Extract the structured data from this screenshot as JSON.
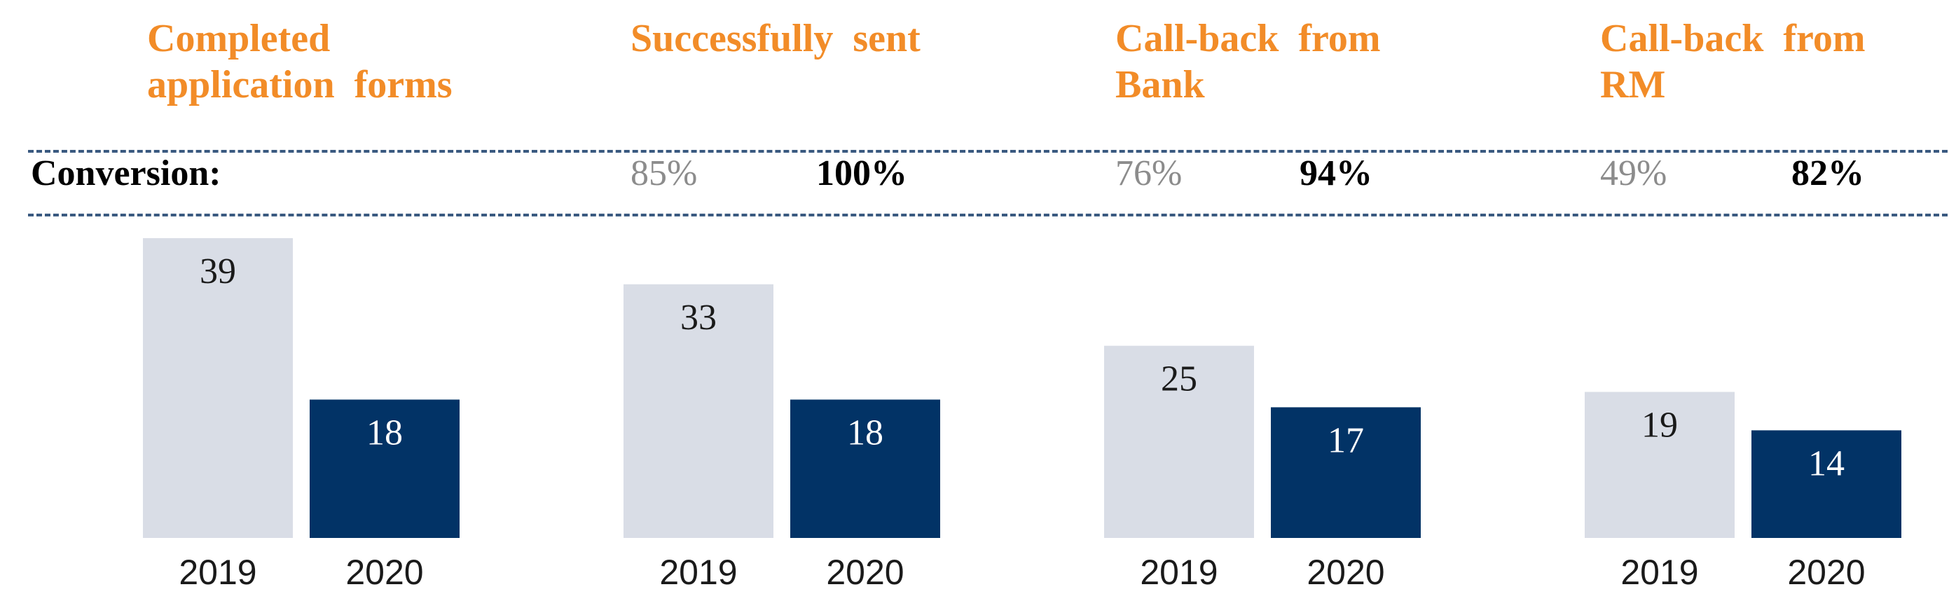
{
  "chart_data": {
    "type": "bar",
    "title": "",
    "xlabel": "",
    "ylabel": "",
    "ylim": [
      0,
      39
    ],
    "conversion_label": "Conversion:",
    "series_names": [
      "2019",
      "2020"
    ],
    "groups": [
      {
        "title": "Completed\napplication forms",
        "values": [
          39,
          18
        ],
        "conversion": null
      },
      {
        "title": "Successfully sent",
        "values": [
          33,
          18
        ],
        "conversion": [
          "85%",
          "100%"
        ]
      },
      {
        "title": "Call-back from\nBank",
        "values": [
          25,
          17
        ],
        "conversion": [
          "76%",
          "94%"
        ]
      },
      {
        "title": "Call-back from\nRM",
        "values": [
          19,
          14
        ],
        "conversion": [
          "49%",
          "82%"
        ]
      }
    ]
  },
  "colors": {
    "title": "#f28c28",
    "bar_2019": "#d9dde6",
    "bar_2020": "#023366",
    "conversion_prev": "#8c8c8c",
    "conversion_curr": "#000000",
    "dashed_line": "#3a5a80"
  }
}
